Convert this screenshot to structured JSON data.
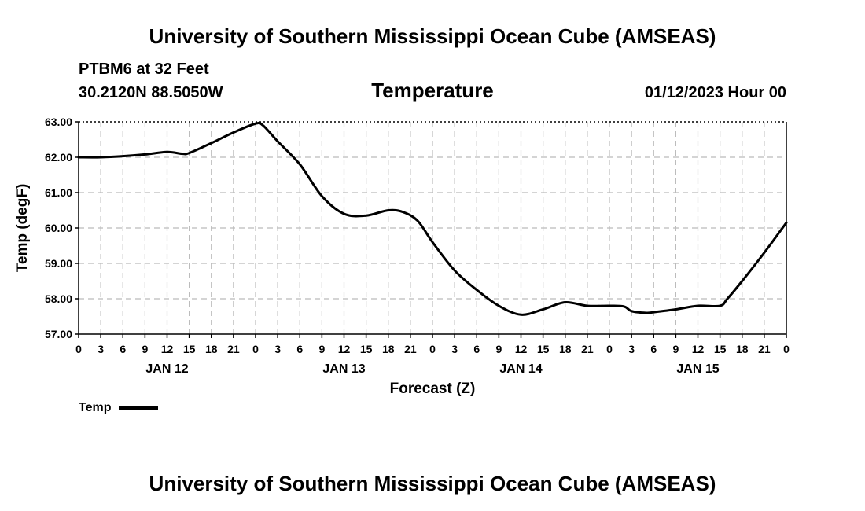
{
  "header": {
    "title": "University of Southern Mississippi Ocean Cube (AMSEAS)",
    "station_name": "PTBM6 at 32 Feet",
    "station_coords": "30.2120N  88.5050W",
    "chart_title": "Temperature",
    "forecast_time": "01/12/2023 Hour 00"
  },
  "footer": {
    "title": "University of Southern Mississippi Ocean Cube (AMSEAS)"
  },
  "legend": {
    "label": "Temp"
  },
  "colors": {
    "line": "#000000",
    "grid": "#bbbbbb",
    "background": "#ffffff"
  },
  "chart_data": {
    "type": "line",
    "title": "Temperature",
    "xlabel": "Forecast (Z)",
    "ylabel": "Temp (degF)",
    "ylim": [
      57.0,
      63.0
    ],
    "xlim": [
      0,
      96
    ],
    "x_unit": "hours since 01/12/2023 00Z",
    "y_ticks": [
      "57.00",
      "58.00",
      "59.00",
      "60.00",
      "61.00",
      "62.00",
      "63.00"
    ],
    "x_tick_labels": [
      "0",
      "3",
      "6",
      "9",
      "12",
      "15",
      "18",
      "21",
      "0",
      "3",
      "6",
      "9",
      "12",
      "15",
      "18",
      "21",
      "0",
      "3",
      "6",
      "9",
      "12",
      "15",
      "18",
      "21",
      "0",
      "3",
      "6",
      "9",
      "12",
      "15",
      "18",
      "21",
      "0"
    ],
    "day_labels": [
      {
        "label": "JAN 12",
        "hour": 12
      },
      {
        "label": "JAN 13",
        "hour": 36
      },
      {
        "label": "JAN 14",
        "hour": 60
      },
      {
        "label": "JAN 15",
        "hour": 84
      }
    ],
    "grid": true,
    "series": [
      {
        "name": "Temp",
        "x": [
          0,
          3,
          6,
          9,
          12,
          14,
          15,
          18,
          21,
          24,
          25,
          27,
          30,
          33,
          36,
          39,
          42,
          44,
          46,
          48,
          51,
          54,
          57,
          60,
          63,
          66,
          69,
          72,
          74,
          75,
          77,
          78,
          81,
          84,
          87,
          88,
          90,
          93,
          96
        ],
        "values": [
          62.0,
          62.0,
          62.03,
          62.08,
          62.15,
          62.1,
          62.12,
          62.4,
          62.7,
          62.95,
          62.9,
          62.45,
          61.8,
          60.9,
          60.4,
          60.35,
          60.5,
          60.45,
          60.2,
          59.6,
          58.8,
          58.25,
          57.8,
          57.55,
          57.7,
          57.9,
          57.8,
          57.8,
          57.78,
          57.65,
          57.6,
          57.62,
          57.7,
          57.8,
          57.8,
          58.0,
          58.5,
          59.3,
          60.15
        ]
      }
    ]
  }
}
